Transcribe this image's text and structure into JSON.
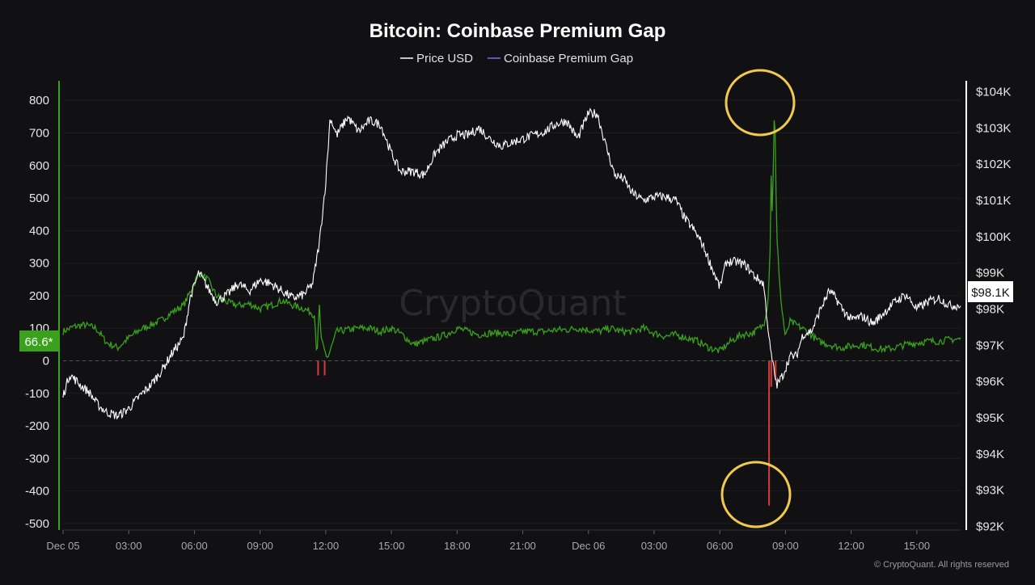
{
  "chart_data": {
    "type": "line",
    "title": "Bitcoin: Coinbase Premium Gap",
    "legend": [
      {
        "label": "Price USD",
        "color": "#ffffff"
      },
      {
        "label": "Coinbase Premium Gap",
        "color": "#7b6cf6"
      }
    ],
    "legend_placement": "top-center",
    "x_ticks": [
      "Dec 05",
      "03:00",
      "06:00",
      "09:00",
      "12:00",
      "15:00",
      "18:00",
      "21:00",
      "Dec 06",
      "03:00",
      "06:00",
      "09:00",
      "12:00",
      "15:00"
    ],
    "x_range_hours": [
      0,
      41
    ],
    "y_left": {
      "ticks": [
        "800",
        "700",
        "600",
        "500",
        "400",
        "300",
        "200",
        "100",
        "0",
        "-100",
        "-200",
        "-300",
        "-400",
        "-500"
      ],
      "range": [
        -520,
        860
      ]
    },
    "y_right": {
      "ticks": [
        "$104K",
        "$103K",
        "$102K",
        "$101K",
        "$100K",
        "$99K",
        "$98K",
        "$97K",
        "$96K",
        "$95K",
        "$94K",
        "$93K",
        "$92K"
      ],
      "range": [
        91900,
        104300
      ]
    },
    "current_premium_label": "66.6*",
    "current_price_label": "$98.1K",
    "price_series": [
      [
        0,
        95600
      ],
      [
        0.3,
        96200
      ],
      [
        0.8,
        95900
      ],
      [
        1.2,
        95700
      ],
      [
        1.6,
        95350
      ],
      [
        2.0,
        95150
      ],
      [
        2.5,
        95050
      ],
      [
        3.0,
        95250
      ],
      [
        3.5,
        95600
      ],
      [
        4.0,
        95900
      ],
      [
        4.5,
        96300
      ],
      [
        5.0,
        96800
      ],
      [
        5.5,
        97200
      ],
      [
        5.8,
        98300
      ],
      [
        6.2,
        99000
      ],
      [
        6.6,
        98600
      ],
      [
        7.0,
        98200
      ],
      [
        7.5,
        98400
      ],
      [
        8.0,
        98700
      ],
      [
        8.5,
        98500
      ],
      [
        9.0,
        98800
      ],
      [
        9.5,
        98700
      ],
      [
        10.0,
        98500
      ],
      [
        10.5,
        98300
      ],
      [
        11.0,
        98400
      ],
      [
        11.4,
        98700
      ],
      [
        11.7,
        99800
      ],
      [
        12.0,
        101500
      ],
      [
        12.2,
        103300
      ],
      [
        12.5,
        102800
      ],
      [
        13.0,
        103300
      ],
      [
        13.5,
        102900
      ],
      [
        14.0,
        103200
      ],
      [
        14.5,
        103100
      ],
      [
        15.0,
        102300
      ],
      [
        15.4,
        101800
      ],
      [
        16.0,
        101800
      ],
      [
        16.5,
        101700
      ],
      [
        17.0,
        102300
      ],
      [
        17.5,
        102600
      ],
      [
        18.0,
        102800
      ],
      [
        18.5,
        102800
      ],
      [
        19.0,
        103000
      ],
      [
        19.5,
        102700
      ],
      [
        20.0,
        102500
      ],
      [
        20.5,
        102600
      ],
      [
        21.0,
        102700
      ],
      [
        21.5,
        102800
      ],
      [
        22.0,
        102900
      ],
      [
        22.5,
        103100
      ],
      [
        23.0,
        103200
      ],
      [
        23.5,
        102700
      ],
      [
        24.0,
        103400
      ],
      [
        24.4,
        103400
      ],
      [
        24.8,
        102500
      ],
      [
        25.2,
        101700
      ],
      [
        25.6,
        101600
      ],
      [
        26.0,
        101200
      ],
      [
        26.5,
        101000
      ],
      [
        27.0,
        101100
      ],
      [
        27.5,
        101100
      ],
      [
        28.0,
        101000
      ],
      [
        28.4,
        100500
      ],
      [
        28.8,
        100200
      ],
      [
        29.2,
        99800
      ],
      [
        29.6,
        99200
      ],
      [
        30.0,
        98600
      ],
      [
        30.3,
        99300
      ],
      [
        30.8,
        99300
      ],
      [
        31.2,
        99200
      ],
      [
        31.6,
        98900
      ],
      [
        32.0,
        98700
      ],
      [
        32.3,
        96900
      ],
      [
        32.6,
        95900
      ],
      [
        32.9,
        96200
      ],
      [
        33.2,
        96700
      ],
      [
        33.5,
        96700
      ],
      [
        33.8,
        97300
      ],
      [
        34.2,
        97400
      ],
      [
        34.6,
        98000
      ],
      [
        35.0,
        98500
      ],
      [
        35.3,
        98300
      ],
      [
        35.6,
        98000
      ],
      [
        36.0,
        97700
      ],
      [
        36.5,
        97800
      ],
      [
        37.0,
        97600
      ],
      [
        37.5,
        97900
      ],
      [
        38.0,
        98200
      ],
      [
        38.5,
        98400
      ],
      [
        39.0,
        98000
      ],
      [
        39.5,
        98200
      ],
      [
        40.0,
        98300
      ],
      [
        40.5,
        98100
      ],
      [
        41.0,
        98100
      ]
    ],
    "premium_series": [
      [
        0,
        90
      ],
      [
        0.5,
        105
      ],
      [
        1.0,
        110
      ],
      [
        1.5,
        100
      ],
      [
        2.0,
        55
      ],
      [
        2.5,
        40
      ],
      [
        3.0,
        70
      ],
      [
        3.5,
        95
      ],
      [
        4.0,
        110
      ],
      [
        4.5,
        125
      ],
      [
        5.0,
        150
      ],
      [
        5.5,
        170
      ],
      [
        5.8,
        210
      ],
      [
        6.2,
        270
      ],
      [
        6.6,
        250
      ],
      [
        7.0,
        200
      ],
      [
        7.5,
        180
      ],
      [
        8.0,
        170
      ],
      [
        8.5,
        175
      ],
      [
        9.0,
        160
      ],
      [
        9.5,
        170
      ],
      [
        10.0,
        185
      ],
      [
        10.5,
        170
      ],
      [
        11.0,
        160
      ],
      [
        11.3,
        150
      ],
      [
        11.5,
        140
      ],
      [
        11.6,
        0
      ],
      [
        11.7,
        175
      ],
      [
        11.8,
        60
      ],
      [
        12.0,
        20
      ],
      [
        12.1,
        10
      ],
      [
        12.3,
        50
      ],
      [
        12.5,
        90
      ],
      [
        13.0,
        95
      ],
      [
        13.5,
        100
      ],
      [
        14.0,
        100
      ],
      [
        14.5,
        90
      ],
      [
        15.0,
        100
      ],
      [
        15.5,
        80
      ],
      [
        16.0,
        50
      ],
      [
        16.5,
        60
      ],
      [
        17.0,
        70
      ],
      [
        17.5,
        80
      ],
      [
        18.0,
        100
      ],
      [
        18.5,
        90
      ],
      [
        19.0,
        80
      ],
      [
        19.5,
        85
      ],
      [
        20.0,
        85
      ],
      [
        20.5,
        80
      ],
      [
        21.0,
        90
      ],
      [
        21.5,
        90
      ],
      [
        22.0,
        90
      ],
      [
        22.5,
        95
      ],
      [
        23.0,
        95
      ],
      [
        23.5,
        100
      ],
      [
        24.0,
        95
      ],
      [
        24.5,
        90
      ],
      [
        25.0,
        100
      ],
      [
        25.5,
        90
      ],
      [
        26.0,
        90
      ],
      [
        26.5,
        100
      ],
      [
        27.0,
        85
      ],
      [
        27.5,
        75
      ],
      [
        28.0,
        80
      ],
      [
        28.5,
        70
      ],
      [
        29.0,
        60
      ],
      [
        29.5,
        40
      ],
      [
        30.0,
        30
      ],
      [
        30.5,
        60
      ],
      [
        31.0,
        80
      ],
      [
        31.5,
        85
      ],
      [
        32.0,
        110
      ],
      [
        32.2,
        180
      ],
      [
        32.3,
        350
      ],
      [
        32.35,
        600
      ],
      [
        32.4,
        420
      ],
      [
        32.5,
        820
      ],
      [
        32.6,
        380
      ],
      [
        32.7,
        280
      ],
      [
        32.8,
        180
      ],
      [
        33.0,
        70
      ],
      [
        33.2,
        120
      ],
      [
        33.5,
        110
      ],
      [
        34.0,
        90
      ],
      [
        34.5,
        60
      ],
      [
        35.0,
        50
      ],
      [
        35.5,
        40
      ],
      [
        36.0,
        45
      ],
      [
        36.5,
        50
      ],
      [
        37.0,
        40
      ],
      [
        37.5,
        35
      ],
      [
        38.0,
        40
      ],
      [
        38.5,
        50
      ],
      [
        39.0,
        55
      ],
      [
        39.5,
        60
      ],
      [
        40.0,
        60
      ],
      [
        40.5,
        65
      ],
      [
        41.0,
        66.6
      ]
    ],
    "negative_spikes": [
      [
        11.65,
        -45
      ],
      [
        11.95,
        -45
      ],
      [
        32.25,
        -445
      ],
      [
        32.35,
        -80
      ],
      [
        32.55,
        -60
      ]
    ]
  },
  "watermark": "CryptoQuant",
  "copyright": "© CryptoQuant. All rights reserved",
  "colors": {
    "background": "#111114",
    "premium_positive": "#39a11c",
    "premium_negative": "#d43c3c",
    "price_line": "#ffffff",
    "highlight_circle": "#f2c94c"
  }
}
